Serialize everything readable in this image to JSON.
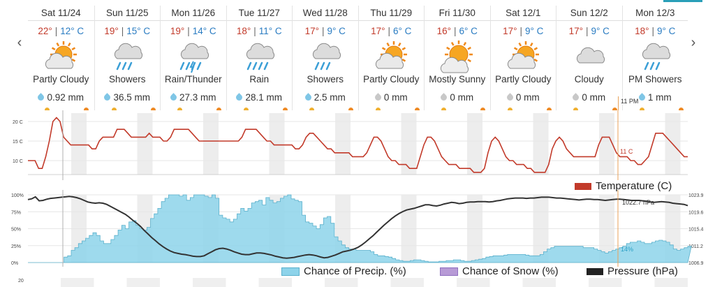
{
  "nav": {
    "prev_icon": "‹",
    "next_icon": "›"
  },
  "days": [
    {
      "label": "Sat 11/24",
      "hi": "22°",
      "lo": "12° C",
      "cond": "Partly Cloudy",
      "icon": "partly-cloudy",
      "precip": "0.92 mm",
      "wet": true
    },
    {
      "label": "Sun 11/25",
      "hi": "19°",
      "lo": "15° C",
      "cond": "Showers",
      "icon": "showers",
      "precip": "36.5 mm",
      "wet": true
    },
    {
      "label": "Mon 11/26",
      "hi": "19°",
      "lo": "14° C",
      "cond": "Rain/Thunder",
      "icon": "thunder",
      "precip": "27.3 mm",
      "wet": true
    },
    {
      "label": "Tue 11/27",
      "hi": "18°",
      "lo": "11° C",
      "cond": "Rain",
      "icon": "rain",
      "precip": "28.1 mm",
      "wet": true
    },
    {
      "label": "Wed 11/28",
      "hi": "17°",
      "lo": "9° C",
      "cond": "Showers",
      "icon": "showers",
      "precip": "2.5 mm",
      "wet": true
    },
    {
      "label": "Thu 11/29",
      "hi": "17°",
      "lo": "6° C",
      "cond": "Partly Cloudy",
      "icon": "partly-cloudy",
      "precip": "0 mm",
      "wet": false
    },
    {
      "label": "Fri 11/30",
      "hi": "16°",
      "lo": "6° C",
      "cond": "Mostly Sunny",
      "icon": "mostly-sunny",
      "precip": "0 mm",
      "wet": false
    },
    {
      "label": "Sat 12/1",
      "hi": "17°",
      "lo": "9° C",
      "cond": "Partly Cloudy",
      "icon": "partly-cloudy",
      "precip": "0 mm",
      "wet": false
    },
    {
      "label": "Sun 12/2",
      "hi": "17°",
      "lo": "9° C",
      "cond": "Cloudy",
      "icon": "cloudy",
      "precip": "0 mm",
      "wet": false
    },
    {
      "label": "Mon 12/3",
      "hi": "18°",
      "lo": "9° C",
      "cond": "PM Showers",
      "icon": "showers",
      "precip": "1 mm",
      "wet": true
    }
  ],
  "temp_chart": {
    "y_ticks": [
      "20 C",
      "15 C",
      "10 C"
    ],
    "cursor_label": "11 C",
    "cursor_time": "11 PM",
    "series_color": "#c23a2a",
    "values": [
      10,
      10,
      10,
      8,
      8,
      11,
      15,
      20,
      21,
      20,
      16,
      15,
      14,
      14,
      14,
      14,
      14,
      14,
      13,
      13,
      15,
      16,
      16,
      16,
      16,
      18,
      18,
      18,
      17,
      16,
      16,
      16,
      16,
      16,
      17,
      16,
      16,
      16,
      15,
      15,
      16,
      18,
      18,
      18,
      18,
      18,
      17,
      16,
      15,
      15,
      15,
      15,
      15,
      15,
      15,
      15,
      15,
      15,
      15,
      15,
      16,
      18,
      18,
      18,
      18,
      17,
      16,
      15,
      15,
      14,
      14,
      14,
      14,
      14,
      14,
      13,
      13,
      14,
      16,
      17,
      17,
      16,
      15,
      14,
      13,
      13,
      12,
      12,
      12,
      12,
      12,
      11,
      11,
      11,
      11,
      12,
      14,
      16,
      16,
      15,
      13,
      11,
      10,
      10,
      9,
      9,
      9,
      8,
      8,
      8,
      11,
      14,
      16,
      16,
      15,
      13,
      11,
      10,
      9,
      9,
      9,
      8,
      8,
      8,
      8,
      7,
      7,
      7,
      8,
      12,
      15,
      16,
      15,
      13,
      11,
      10,
      10,
      9,
      9,
      9,
      8,
      8,
      7,
      7,
      7,
      7,
      9,
      13,
      15,
      16,
      15,
      13,
      12,
      11,
      11,
      11,
      11,
      11,
      11,
      11,
      14,
      16,
      16,
      16,
      14,
      12,
      11,
      11,
      11,
      10,
      10,
      9,
      9,
      10,
      11,
      14,
      17,
      17,
      17,
      16,
      15,
      14,
      13,
      12,
      11,
      11
    ]
  },
  "precip_chart": {
    "y_ticks_left": [
      "100%",
      "75%",
      "50%",
      "25%",
      "0%"
    ],
    "y_ticks_right": [
      "1023.9",
      "1019.6",
      "1015.4",
      "1011.2",
      "1006.9"
    ],
    "cursor_precip_label": "14%",
    "cursor_pressure_label": "1022.7 hPa",
    "precip_color": "#8dd3ea",
    "pressure_color": "#333333",
    "precip": [
      0,
      0,
      0,
      0,
      0,
      0,
      0,
      0,
      0,
      0,
      8,
      10,
      18,
      22,
      28,
      32,
      36,
      40,
      44,
      40,
      32,
      28,
      28,
      34,
      40,
      48,
      55,
      50,
      60,
      62,
      55,
      50,
      48,
      52,
      65,
      72,
      80,
      90,
      95,
      100,
      100,
      100,
      98,
      100,
      92,
      96,
      100,
      100,
      100,
      98,
      96,
      100,
      95,
      70,
      66,
      64,
      60,
      64,
      72,
      80,
      76,
      80,
      88,
      90,
      92,
      85,
      96,
      92,
      88,
      90,
      95,
      98,
      100,
      94,
      92,
      90,
      70,
      60,
      58,
      54,
      50,
      56,
      66,
      68,
      58,
      38,
      32,
      26,
      22,
      20,
      20,
      18,
      18,
      18,
      18,
      16,
      12,
      10,
      10,
      9,
      8,
      6,
      4,
      3,
      2,
      2,
      3,
      4,
      4,
      3,
      2,
      1,
      1,
      1,
      2,
      2,
      3,
      3,
      4,
      4,
      3,
      2,
      2,
      3,
      4,
      5,
      6,
      8,
      9,
      10,
      10,
      10,
      11,
      12,
      12,
      12,
      12,
      12,
      11,
      10,
      10,
      10,
      12,
      16,
      20,
      22,
      24,
      24,
      24,
      24,
      24,
      24,
      24,
      24,
      22,
      22,
      22,
      20,
      18,
      16,
      14,
      16,
      18,
      20,
      22,
      24,
      28,
      30,
      30,
      32,
      30,
      28,
      28,
      30,
      32,
      33,
      32,
      30,
      26,
      20,
      18,
      20,
      22,
      24
    ],
    "pressure": [
      1022.7,
      1022.9,
      1023.4,
      1022.4,
      1022.5,
      1022.8,
      1023.0,
      1023.1,
      1023.2,
      1023.3,
      1023.4,
      1023.5,
      1023.4,
      1023.2,
      1022.9,
      1022.5,
      1022.1,
      1021.9,
      1021.8,
      1021.9,
      1021.8,
      1021.5,
      1021.0,
      1020.5,
      1020.0,
      1019.5,
      1019.0,
      1018.3,
      1017.5,
      1016.8,
      1016.0,
      1015.0,
      1014.1,
      1013.2,
      1012.4,
      1011.6,
      1010.9,
      1010.3,
      1009.8,
      1009.4,
      1009.2,
      1009.0,
      1008.9,
      1008.7,
      1008.5,
      1008.4,
      1008.4,
      1008.6,
      1009.1,
      1009.6,
      1010.1,
      1010.4,
      1010.5,
      1010.3,
      1010.0,
      1009.6,
      1009.3,
      1009.0,
      1008.9,
      1008.9,
      1009.1,
      1009.3,
      1009.3,
      1009.2,
      1009.0,
      1008.8,
      1008.5,
      1008.3,
      1008.1,
      1008.0,
      1008.1,
      1008.2,
      1008.4,
      1008.6,
      1008.8,
      1008.9,
      1008.8,
      1008.6,
      1008.3,
      1008.1,
      1008.2,
      1008.5,
      1008.8,
      1009.2,
      1009.6,
      1009.8,
      1010.0,
      1010.3,
      1010.7,
      1011.3,
      1012.0,
      1012.8,
      1013.6,
      1014.5,
      1015.4,
      1016.3,
      1017.1,
      1017.9,
      1018.6,
      1019.2,
      1019.7,
      1020.1,
      1020.3,
      1020.5,
      1020.8,
      1021.1,
      1021.4,
      1021.4,
      1021.2,
      1021.1,
      1021.3,
      1021.6,
      1021.8,
      1022.0,
      1021.9,
      1021.7,
      1021.8,
      1022.0,
      1022.1,
      1022.1,
      1022.2,
      1022.2,
      1022.2,
      1022.1,
      1022.2,
      1022.4,
      1022.5,
      1022.7,
      1022.9,
      1023.0,
      1023.1,
      1023.1,
      1023.1,
      1023.0,
      1023.1,
      1023.1,
      1023.2,
      1023.3,
      1023.3,
      1023.3,
      1023.2,
      1023.1,
      1023.1,
      1023.0,
      1022.9,
      1022.8,
      1022.7,
      1022.6,
      1022.7,
      1022.8,
      1022.8,
      1022.7,
      1022.7,
      1022.6,
      1022.5,
      1022.6,
      1022.7,
      1022.8,
      1022.8,
      1022.7,
      1022.6,
      1022.5,
      1022.5,
      1022.5,
      1022.4,
      1022.3,
      1022.1,
      1022.0,
      1022.1,
      1022.2,
      1022.1,
      1022.0,
      1021.8,
      1021.7,
      1021.6,
      1021.5,
      1021.2
    ]
  },
  "bottom_chart": {
    "y_tick": "20"
  },
  "legend": {
    "temperature": {
      "label": "Temperature (C)",
      "color": "#c23a2a"
    },
    "precip": {
      "label": "Chance of Precip. (%)",
      "color": "#8dd3ea"
    },
    "snow": {
      "label": "Chance of Snow (%)",
      "color": "#b79ad6"
    },
    "pressure": {
      "label": "Pressure (hPa)",
      "color": "#222222"
    }
  }
}
